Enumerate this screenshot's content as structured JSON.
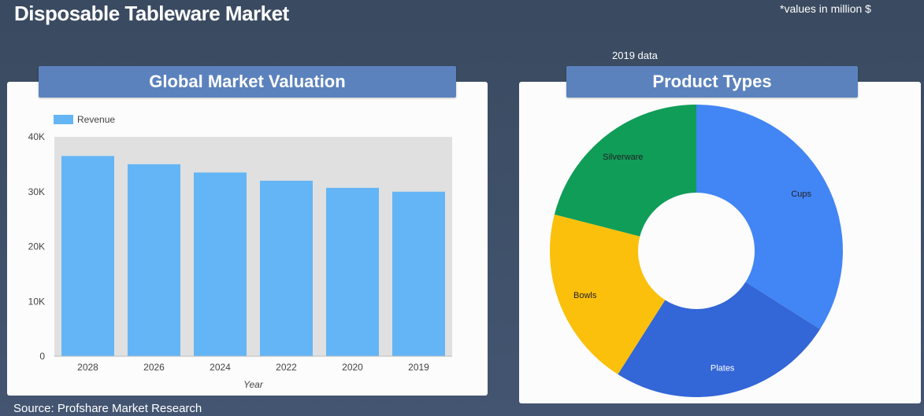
{
  "header": {
    "title": "Disposable Tableware Market",
    "units_note": "*values in million $"
  },
  "footer": {
    "source": "Source: Profshare Market Research"
  },
  "pie_year_note": "2019 data",
  "chart_data": [
    {
      "type": "bar",
      "title": "Global Market Valuation",
      "categories": [
        "2028",
        "2026",
        "2024",
        "2022",
        "2020",
        "2019"
      ],
      "series": [
        {
          "name": "Revenue",
          "values": [
            36500,
            35000,
            33500,
            32000,
            30700,
            30000
          ],
          "color": "#64b5f6"
        }
      ],
      "xlabel": "Year",
      "ylabel": "",
      "ylim": [
        0,
        40000
      ],
      "y_ticks": [
        0,
        10000,
        20000,
        30000,
        40000
      ],
      "y_tick_labels": [
        "0",
        "10K",
        "20K",
        "30K",
        "40K"
      ],
      "grid": false,
      "legend": "top-left",
      "plot_background": "#e0e0e0"
    },
    {
      "type": "pie",
      "title": "Product Types",
      "donut": true,
      "slices": [
        {
          "label": "Cups",
          "value": 34,
          "color": "#4285f4"
        },
        {
          "label": "Plates",
          "value": 25,
          "color": "#3366d6"
        },
        {
          "label": "Bowls",
          "value": 20,
          "color": "#fbc00c"
        },
        {
          "label": "Silverware",
          "value": 21,
          "color": "#109d58"
        }
      ],
      "legend": "none"
    }
  ]
}
